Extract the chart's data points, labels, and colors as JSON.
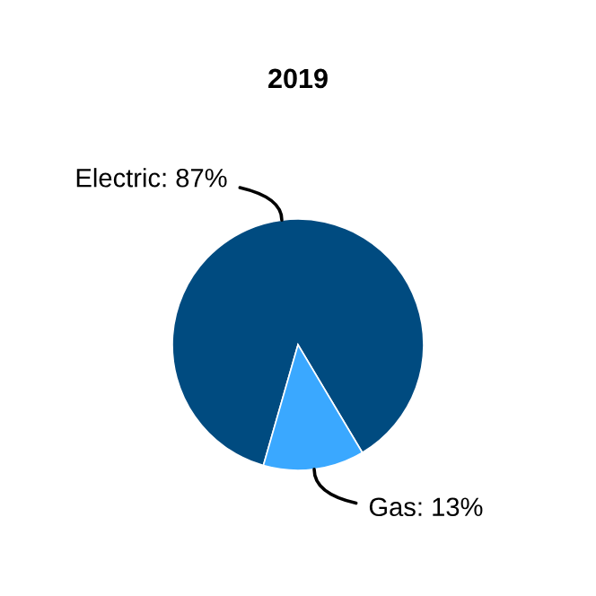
{
  "chart_data": {
    "type": "pie",
    "title": "2019",
    "categories": [
      "Electric",
      "Gas"
    ],
    "values": [
      87,
      13
    ],
    "value_labels": [
      "87%",
      "13%"
    ],
    "colors": [
      "#004b80",
      "#3aa8ff"
    ],
    "legend": false
  }
}
